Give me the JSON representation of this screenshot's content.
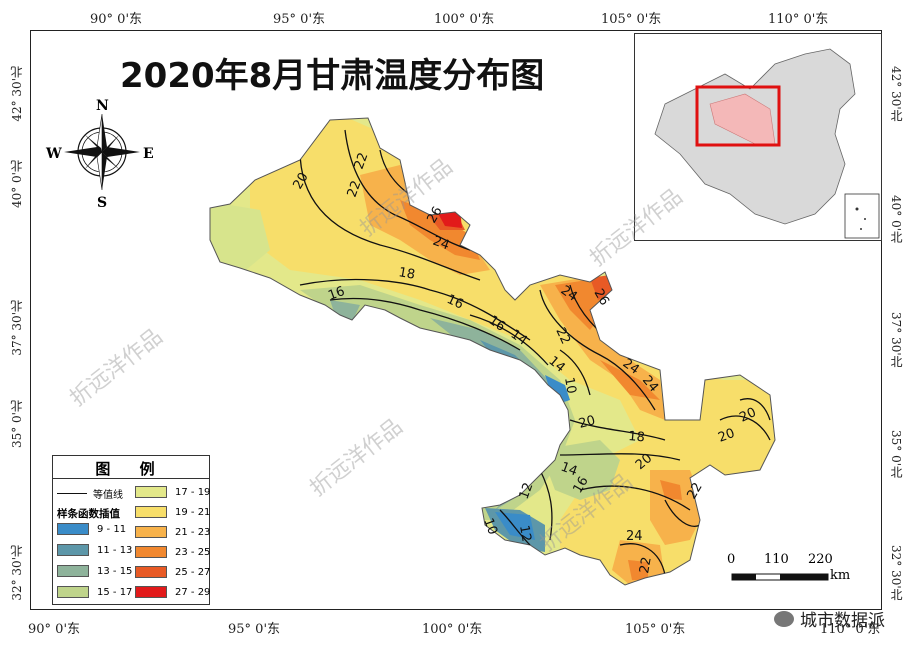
{
  "title": "2020年8月甘肃温度分布图",
  "top_ticks": [
    "90° 0'东",
    "95° 0'东",
    "100° 0'东",
    "105° 0'东",
    "110° 0'东"
  ],
  "bottom_ticks": [
    "90° 0'东",
    "95° 0'东",
    "100° 0'东",
    "105° 0'东",
    "110° 0'东"
  ],
  "left_ticks": [
    "42° 30'北",
    "40° 0'北",
    "37° 30'北",
    "35° 0'北",
    "32° 30'北"
  ],
  "right_ticks": [
    "42° 30'北",
    "40° 0'北",
    "37° 30'北",
    "35° 0'北",
    "32° 30'北"
  ],
  "compass": {
    "n": "N",
    "s": "S",
    "e": "E",
    "w": "W"
  },
  "legend": {
    "title": "图 例",
    "contour_label": "等值线",
    "interp_label": "样条函数插值",
    "classes": [
      {
        "label": "9 - 11",
        "color": "#3a8cc8"
      },
      {
        "label": "11 - 13",
        "color": "#5d97a9"
      },
      {
        "label": "13 - 15",
        "color": "#8eb39b"
      },
      {
        "label": "15 - 17",
        "color": "#bfd48b"
      },
      {
        "label": "17 - 19",
        "color": "#e3e88a"
      },
      {
        "label": "19 - 21",
        "color": "#f7de6a"
      },
      {
        "label": "21 - 23",
        "color": "#f7b24b"
      },
      {
        "label": "23 - 25",
        "color": "#f1882f"
      },
      {
        "label": "25 - 27",
        "color": "#e85a25"
      },
      {
        "label": "27 - 29",
        "color": "#e21a1a"
      }
    ]
  },
  "contour_labels": [
    "20",
    "22",
    "22",
    "26",
    "24",
    "18",
    "16",
    "16",
    "16",
    "14",
    "22",
    "24",
    "26",
    "24",
    "24",
    "14",
    "10",
    "20",
    "18",
    "20",
    "20",
    "14",
    "12",
    "16",
    "20",
    "12",
    "10",
    "22",
    "24",
    "22"
  ],
  "scale": {
    "ticks": [
      "0",
      "110",
      "220"
    ],
    "unit": "km"
  },
  "watermark": "折远洋作品",
  "credit": "城市数据派"
}
